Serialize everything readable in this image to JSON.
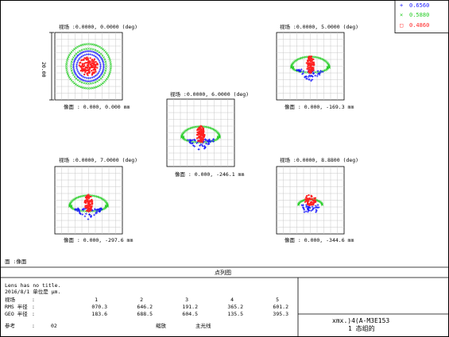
{
  "legend": [
    {
      "label": "0.6560",
      "symbol": "+",
      "color": "#1a1aff"
    },
    {
      "label": "0.5880",
      "symbol": "×",
      "color": "#22cc22"
    },
    {
      "label": "0.4860",
      "symbol": "□",
      "color": "#ff2020"
    }
  ],
  "colors": {
    "blue": "#1a1aff",
    "green": "#22cc22",
    "red": "#ff2020",
    "grid": "#c8c8c8"
  },
  "spots": [
    {
      "field_label": "视场 :0.0000, 0.0000 (deg)",
      "image_label": "像面 : 0.000, 0.000 mm",
      "scale_label": "20.00",
      "shape": "round"
    },
    {
      "field_label": "视场 :0.0000, 5.0000 (deg)",
      "image_label": "像面 : 0.000, -169.3 mm",
      "shape": "fan"
    },
    {
      "field_label": "视场 :0.0000, 6.0000 (deg)",
      "image_label": "像面 : 0.000, -246.1 mm",
      "shape": "fan"
    },
    {
      "field_label": "视场 :0.0000, 7.0000 (deg)",
      "image_label": "像面 : 0.000, -297.6 mm",
      "shape": "fan"
    },
    {
      "field_label": "视场 :0.0000, 8.8800 (deg)",
      "image_label": "像面 : 0.000, -344.6 mm",
      "shape": "small"
    }
  ],
  "surface_label": "面 :像面",
  "section_title": "点列图",
  "info": {
    "line1": "Lens has no title.",
    "line2": "2016/8/1 单位是 µm.",
    "row_labels": [
      "视场",
      "RMS 半径",
      "GEO 半径",
      "参考"
    ],
    "row_seps": [
      ":",
      ":",
      ":",
      ":"
    ],
    "columns": [
      "1",
      "2",
      "3",
      "4",
      "5"
    ],
    "rms": [
      "070.3",
      "646.2",
      "191.2",
      "365.2",
      "601.2"
    ],
    "geo": [
      "",
      "688.5",
      "604.5",
      "135.5",
      "395.3"
    ],
    "ref_prefix": "02",
    "ref_middle": "主光线",
    "ref_right": "缩放",
    "rms_geo_1": "",
    "extra_col1": "183.6"
  },
  "title_box": {
    "line1": "xmx.)4(A-M3E153",
    "line2": "1 态组的"
  }
}
